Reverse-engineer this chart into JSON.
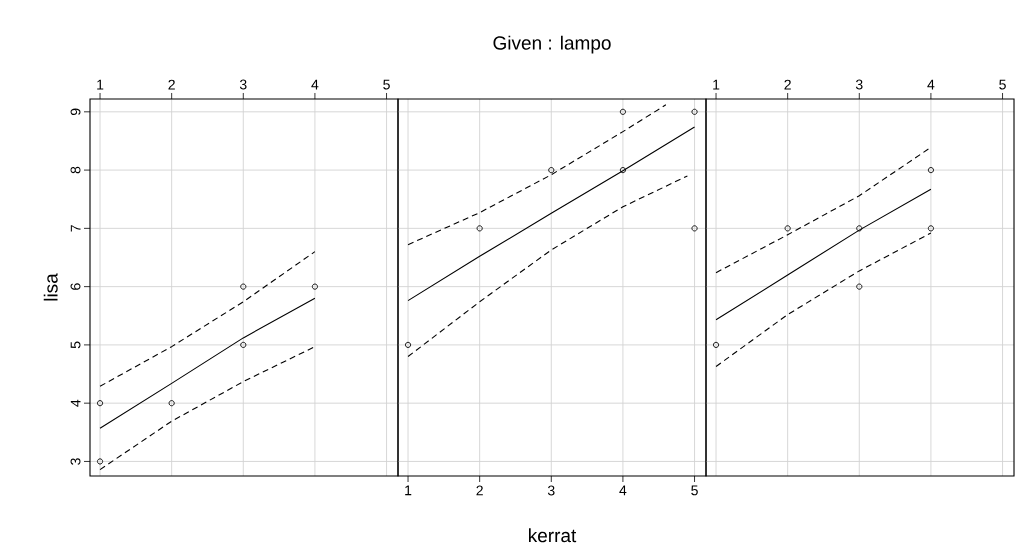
{
  "chart_data": [
    {
      "type": "scatter",
      "ylabel": "lisa",
      "xlim": [
        0.86,
        5.16
      ],
      "ylim": [
        2.75,
        9.22
      ],
      "xticks": [
        1,
        2,
        3,
        4,
        5
      ],
      "yticks": [
        3,
        4,
        5,
        6,
        7,
        8,
        9
      ],
      "grid": true,
      "series": [
        {
          "marker": "circle",
          "color": "#000000",
          "x": [
            1,
            1,
            2,
            3,
            3,
            4
          ],
          "values": [
            4,
            3,
            4,
            6,
            5,
            6
          ]
        },
        {
          "type": "line",
          "color": "#000000",
          "line_style": "solid",
          "x": [
            1,
            2,
            3,
            4
          ],
          "values": [
            3.57,
            4.34,
            5.12,
            5.8
          ]
        },
        {
          "type": "line",
          "color": "#000000",
          "line_style": "dashed",
          "x": [
            1,
            2,
            3,
            4
          ],
          "values": [
            4.29,
            4.97,
            5.74,
            6.6
          ]
        },
        {
          "type": "line",
          "color": "#000000",
          "line_style": "dashed",
          "x": [
            1,
            2,
            3,
            4
          ],
          "values": [
            2.86,
            3.69,
            4.37,
            4.97
          ]
        }
      ]
    },
    {
      "type": "scatter",
      "title": "Given : lampo",
      "xlabel": "kerrat",
      "xlim": [
        0.86,
        5.16
      ],
      "ylim": [
        2.75,
        9.22
      ],
      "xticks": [
        1,
        2,
        3,
        4,
        5
      ],
      "yticks": [
        3,
        4,
        5,
        6,
        7,
        8,
        9
      ],
      "grid": true,
      "tick_labels": "x",
      "series": [
        {
          "marker": "circle",
          "color": "#000000",
          "x": [
            1,
            2,
            3,
            4,
            4,
            5,
            5
          ],
          "values": [
            5,
            7,
            8,
            9,
            8,
            9,
            7
          ]
        },
        {
          "type": "line",
          "color": "#000000",
          "line_style": "solid",
          "x": [
            1,
            2,
            3,
            4,
            5
          ],
          "values": [
            5.76,
            6.52,
            7.26,
            7.99,
            8.74
          ]
        },
        {
          "type": "line",
          "color": "#000000",
          "line_style": "dashed",
          "x": [
            1,
            2,
            3,
            4,
            4.6
          ],
          "values": [
            6.72,
            7.27,
            7.92,
            8.66,
            9.12
          ]
        },
        {
          "type": "line",
          "color": "#000000",
          "line_style": "dashed",
          "x": [
            1,
            2,
            3,
            4,
            4.9
          ],
          "values": [
            4.8,
            5.74,
            6.63,
            7.37,
            7.9
          ]
        }
      ]
    },
    {
      "type": "scatter",
      "xlim": [
        0.86,
        5.16
      ],
      "ylim": [
        2.75,
        9.22
      ],
      "xticks": [
        1,
        2,
        3,
        4,
        5
      ],
      "yticks": [
        3,
        4,
        5,
        6,
        7,
        8,
        9
      ],
      "grid": true,
      "tick_labels": "x",
      "series": [
        {
          "marker": "circle",
          "color": "#000000",
          "x": [
            1,
            2,
            3,
            3,
            4,
            4
          ],
          "values": [
            5,
            7,
            7,
            6,
            8,
            7
          ]
        },
        {
          "type": "line",
          "color": "#000000",
          "line_style": "solid",
          "x": [
            1,
            2,
            3,
            4
          ],
          "values": [
            5.43,
            6.2,
            6.97,
            7.67
          ]
        },
        {
          "type": "line",
          "color": "#000000",
          "line_style": "dashed",
          "x": [
            1,
            2,
            3,
            4
          ],
          "values": [
            6.24,
            6.89,
            7.56,
            8.39
          ]
        },
        {
          "type": "line",
          "color": "#000000",
          "line_style": "dashed",
          "x": [
            1,
            2,
            3,
            4
          ],
          "values": [
            4.63,
            5.52,
            6.27,
            6.92
          ]
        }
      ]
    }
  ]
}
